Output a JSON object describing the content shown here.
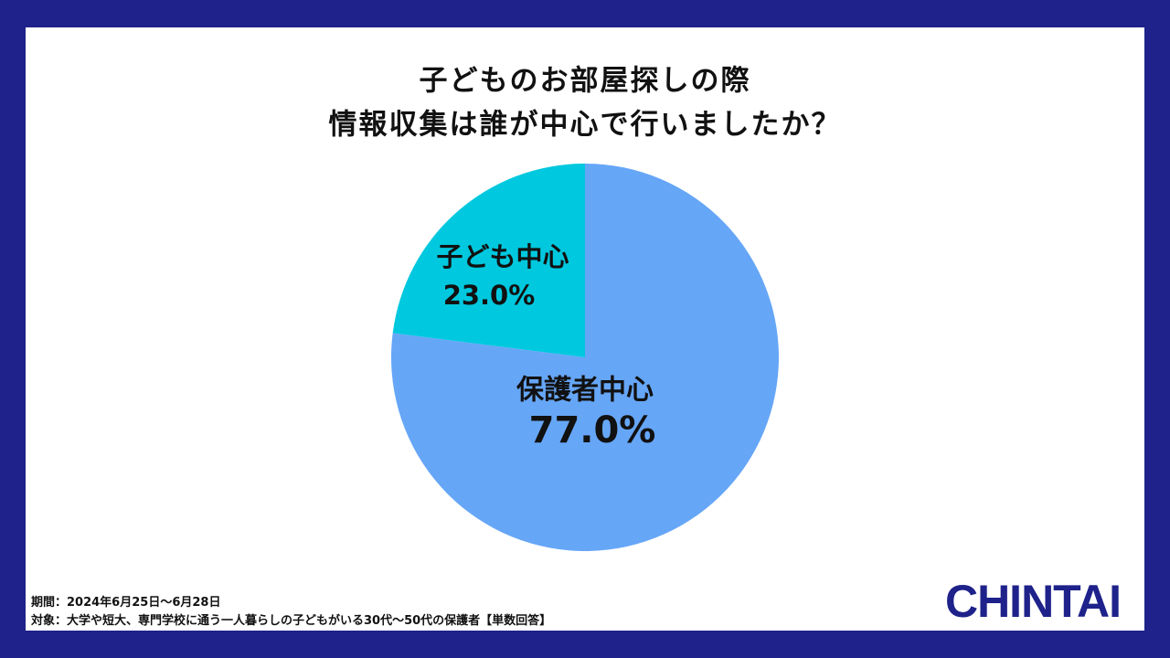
{
  "chart_data": {
    "type": "pie",
    "title": [
      "子どものお部屋探しの際",
      "情報収集は誰が中心で行いましたか？"
    ],
    "categories": [
      "保護者中心",
      "子ども中心"
    ],
    "values": [
      77,
      23
    ],
    "value_labels": [
      "77.0%",
      "23.0%"
    ],
    "colors": [
      "#66a6f7",
      "#00c8de"
    ],
    "notes": [
      "期間：2024年6月25日～6月28日",
      "対象：大学や短大、専門学校に通う一人暮らしの子どもがいる30代～50代の保護者【単数回答】"
    ],
    "logo": "CHINTAI"
  }
}
